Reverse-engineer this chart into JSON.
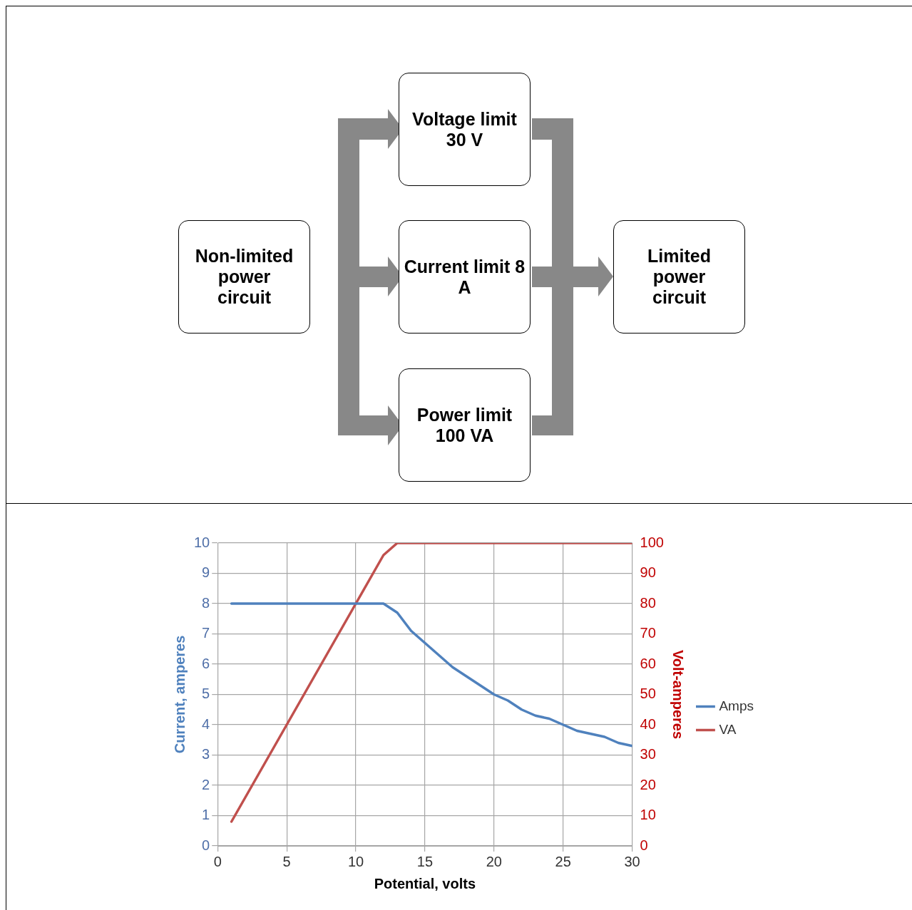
{
  "chart_data": [
    {
      "type": "other",
      "annotations": [
        "Non-limited power circuit",
        "Voltage limit 30 V",
        "Current limit 8 A",
        "Power limit 100 VA",
        "Limited power circuit"
      ]
    },
    {
      "type": "line",
      "xlabel": "Potential, volts",
      "ylabel": "Current, amperes",
      "y2label": "Volt-amperes",
      "x": [
        1,
        2,
        3,
        4,
        5,
        6,
        7,
        8,
        9,
        10,
        11,
        12,
        13,
        14,
        15,
        16,
        17,
        18,
        19,
        20,
        21,
        22,
        23,
        24,
        25,
        26,
        27,
        28,
        29,
        30
      ],
      "series": [
        {
          "name": "Amps",
          "color": "#4f81bd",
          "values": [
            8,
            8,
            8,
            8,
            8,
            8,
            8,
            8,
            8,
            8,
            8,
            8,
            7.7,
            7.1,
            6.7,
            6.3,
            5.9,
            5.6,
            5.3,
            5,
            4.8,
            4.5,
            4.3,
            4.2,
            4,
            3.8,
            3.7,
            3.6,
            3.4,
            3.3
          ]
        },
        {
          "name": "VA",
          "color": "#c0504d",
          "axis": "y2",
          "values": [
            8,
            16,
            24,
            32,
            40,
            48,
            56,
            64,
            72,
            80,
            88,
            96,
            100,
            100,
            100,
            100,
            100,
            100,
            100,
            100,
            100,
            100,
            100,
            100,
            100,
            100,
            100,
            100,
            100,
            100
          ]
        }
      ],
      "xlim": [
        0,
        30
      ],
      "xticks": [
        0,
        5,
        10,
        15,
        20,
        25,
        30
      ],
      "ylim": [
        0,
        10
      ],
      "yticks": [
        0,
        1,
        2,
        3,
        4,
        5,
        6,
        7,
        8,
        9,
        10
      ],
      "y2lim": [
        0,
        100
      ],
      "y2ticks": [
        0,
        10,
        20,
        30,
        40,
        50,
        60,
        70,
        80,
        90,
        100
      ],
      "grid": true,
      "legend": "right",
      "marker": "none",
      "line_style": "solid"
    }
  ]
}
